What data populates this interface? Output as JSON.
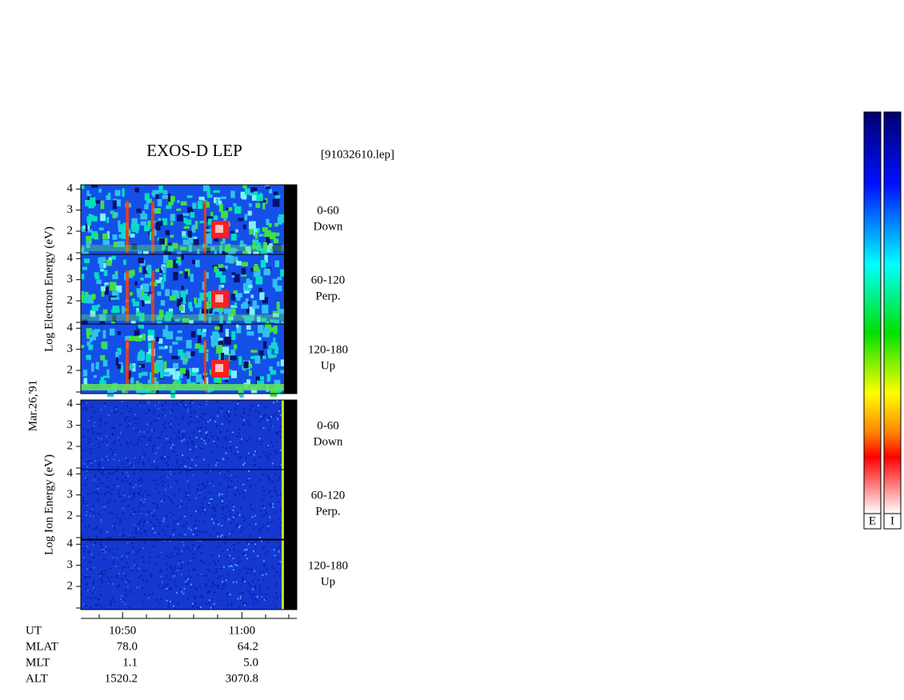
{
  "chart_data": {
    "type": "spectrogram",
    "title": "EXOS-D LEP",
    "file_label": "[91032610.lep]",
    "date_label": "Mar.26,'91",
    "species": [
      {
        "label": "Log Electron Energy (eV)",
        "panels": [
          {
            "range": "0-60",
            "direction": "Down"
          },
          {
            "range": "60-120",
            "direction": "Perp."
          },
          {
            "range": "120-180",
            "direction": "Up"
          }
        ]
      },
      {
        "label": "Log Ion Energy (eV)",
        "panels": [
          {
            "range": "0-60",
            "direction": "Down"
          },
          {
            "range": "60-120",
            "direction": "Perp."
          },
          {
            "range": "120-180",
            "direction": "Up"
          }
        ]
      }
    ],
    "ylim": [
      0.9,
      4.2
    ],
    "yticks": [
      2,
      3,
      4
    ],
    "xlim": [
      646.5,
      664.6
    ],
    "xticks": [
      {
        "value": 650,
        "label": "10:50"
      },
      {
        "value": 660,
        "label": "11:00"
      }
    ],
    "time_row_label": "UT",
    "orbit_rows": [
      {
        "label": "MLAT",
        "values": [
          "78.0",
          "64.2"
        ]
      },
      {
        "label": "MLT",
        "values": [
          "1.1",
          "5.0"
        ]
      },
      {
        "label": "ALT",
        "values": [
          "1520.2",
          "3070.8"
        ]
      }
    ],
    "colorbar_labels": [
      "E",
      "I"
    ]
  }
}
